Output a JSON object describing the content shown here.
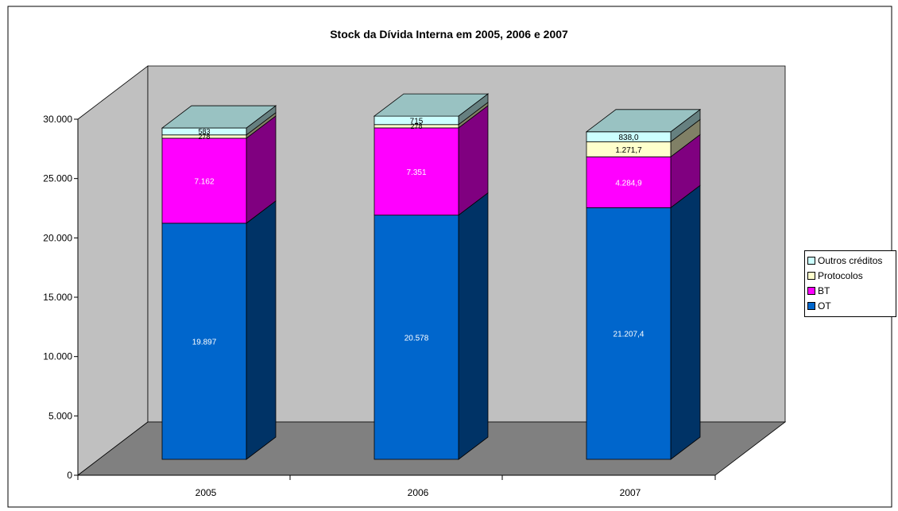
{
  "chart_data": {
    "type": "bar",
    "stacked": true,
    "three_d": true,
    "title": "Stock da Dívida Interna em 2005, 2006 e 2007",
    "categories": [
      "2005",
      "2006",
      "2007"
    ],
    "ylim": [
      0,
      30000
    ],
    "yticks": [
      "0",
      "5.000",
      "10.000",
      "15.000",
      "20.000",
      "25.000",
      "30.000"
    ],
    "ytick_values": [
      0,
      5000,
      10000,
      15000,
      20000,
      25000,
      30000
    ],
    "grid": false,
    "legend_position": "right",
    "series": [
      {
        "name": "OT",
        "values": [
          19897,
          20578,
          21207.4
        ],
        "labels": [
          "19.897",
          "20.578",
          "21.207,4"
        ],
        "color": "#0066CC",
        "side": "#003366",
        "top": "#6699CC",
        "label_color": "#ffffff"
      },
      {
        "name": "BT",
        "values": [
          7162,
          7351,
          4284.9
        ],
        "labels": [
          "7.162",
          "7.351",
          "4.284,9"
        ],
        "color": "#FF00FF",
        "side": "#800080",
        "top": "#CC66CC",
        "label_color": "#ffffff"
      },
      {
        "name": "Protocolos",
        "values": [
          278,
          278,
          1271.7
        ],
        "labels": [
          "278",
          "278",
          "1.271,7"
        ],
        "color": "#FFFFCC",
        "side": "#808066",
        "top": "#CCCCAA",
        "label_color": "#000000"
      },
      {
        "name": "Outros créditos",
        "values": [
          583,
          715,
          838.0
        ],
        "labels": [
          "583",
          "715",
          "838,0"
        ],
        "color": "#CCFFFF",
        "side": "#668080",
        "top": "#99C2C2",
        "label_color": "#000000"
      }
    ]
  },
  "legend": {
    "items": [
      "Outros créditos",
      "Protocolos",
      "BT",
      "OT"
    ],
    "colors": [
      "#CCFFFF",
      "#FFFFCC",
      "#FF00FF",
      "#0066CC"
    ]
  }
}
